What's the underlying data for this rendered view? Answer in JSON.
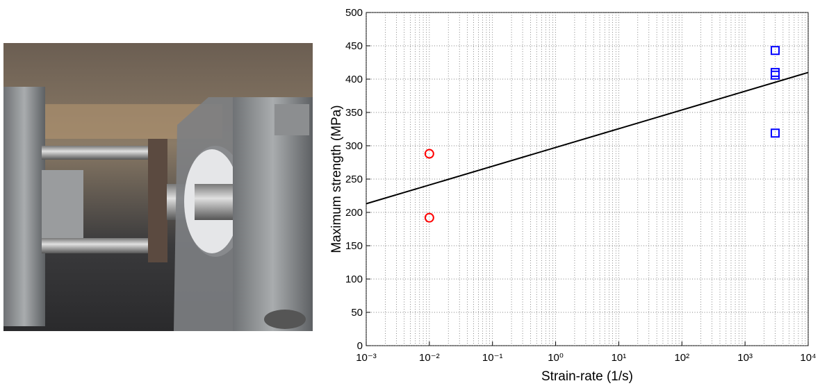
{
  "chart_data": {
    "type": "scatter",
    "xlabel": "Strain-rate (1/s)",
    "ylabel": "Maximum strength (MPa)",
    "xscale": "log",
    "grid": true,
    "xlim": [
      0.001,
      10000
    ],
    "xticks": [
      {
        "value": 0.001,
        "label": "10⁻³"
      },
      {
        "value": 0.01,
        "label": "10⁻²"
      },
      {
        "value": 0.1,
        "label": "10⁻¹"
      },
      {
        "value": 1,
        "label": "10⁰"
      },
      {
        "value": 10,
        "label": "10¹"
      },
      {
        "value": 100,
        "label": "10²"
      },
      {
        "value": 1000,
        "label": "10³"
      },
      {
        "value": 10000,
        "label": "10⁴"
      }
    ],
    "ylim": [
      0,
      500
    ],
    "yticks": [
      0,
      50,
      100,
      150,
      200,
      250,
      300,
      350,
      400,
      450,
      500
    ],
    "series": [
      {
        "marker": "circle",
        "color": "#ff0000",
        "x": [
          0.01,
          0.01
        ],
        "values": [
          288,
          192
        ]
      },
      {
        "marker": "square",
        "color": "#0000ff",
        "x": [
          3000,
          3000,
          3000,
          3000
        ],
        "values": [
          443,
          410,
          406,
          319
        ]
      },
      {
        "marker": "line",
        "color": "#000000",
        "x": [
          0.001,
          10000
        ],
        "values": [
          213,
          410
        ]
      }
    ]
  }
}
